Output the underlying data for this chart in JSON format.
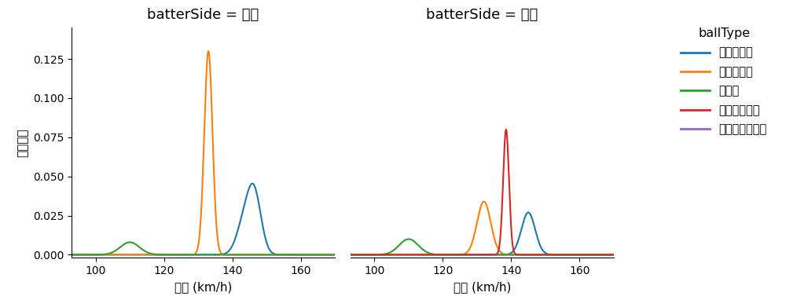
{
  "title_left": "batterSide = 右打",
  "title_right": "batterSide = 左打",
  "xlabel": "球速 (km/h)",
  "ylabel": "確率密度",
  "legend_title": "ballType",
  "legend_entries": [
    "ストレート",
    "スライダー",
    "カーブ",
    "カットボール",
    "チェンジアップ"
  ],
  "colors": {
    "ストレート": "#1f77b4",
    "スライダー": "#ff7f0e",
    "カーブ": "#2ca02c",
    "カットボール": "#d62728",
    "チェンジアップ": "#9467bd"
  },
  "xlim": [
    93,
    170
  ],
  "ylim": [
    -0.002,
    0.145
  ],
  "xticks": [
    100,
    120,
    140,
    160
  ],
  "yticks": [
    0.0,
    0.025,
    0.05,
    0.075,
    0.1,
    0.125
  ],
  "panels": {
    "right": {
      "ストレート": [
        {
          "mean": 143.5,
          "std": 2.2,
          "amplitude": 0.02
        },
        {
          "mean": 146.5,
          "std": 2.0,
          "amplitude": 0.036
        }
      ],
      "スライダー": [
        {
          "mean": 133.0,
          "std": 1.2,
          "amplitude": 0.13
        }
      ],
      "カーブ": [
        {
          "mean": 110.0,
          "std": 2.8,
          "amplitude": 0.008
        }
      ],
      "カットボール": null,
      "チェンジアップ": null
    },
    "left": {
      "ストレート": [
        {
          "mean": 145.0,
          "std": 2.0,
          "amplitude": 0.027
        }
      ],
      "スライダー": [
        {
          "mean": 132.0,
          "std": 2.0,
          "amplitude": 0.034
        }
      ],
      "カーブ": [
        {
          "mean": 110.0,
          "std": 2.8,
          "amplitude": 0.01
        }
      ],
      "カットボール": [
        {
          "mean": 138.5,
          "std": 0.85,
          "amplitude": 0.08
        }
      ],
      "チェンジアップ": null
    }
  }
}
